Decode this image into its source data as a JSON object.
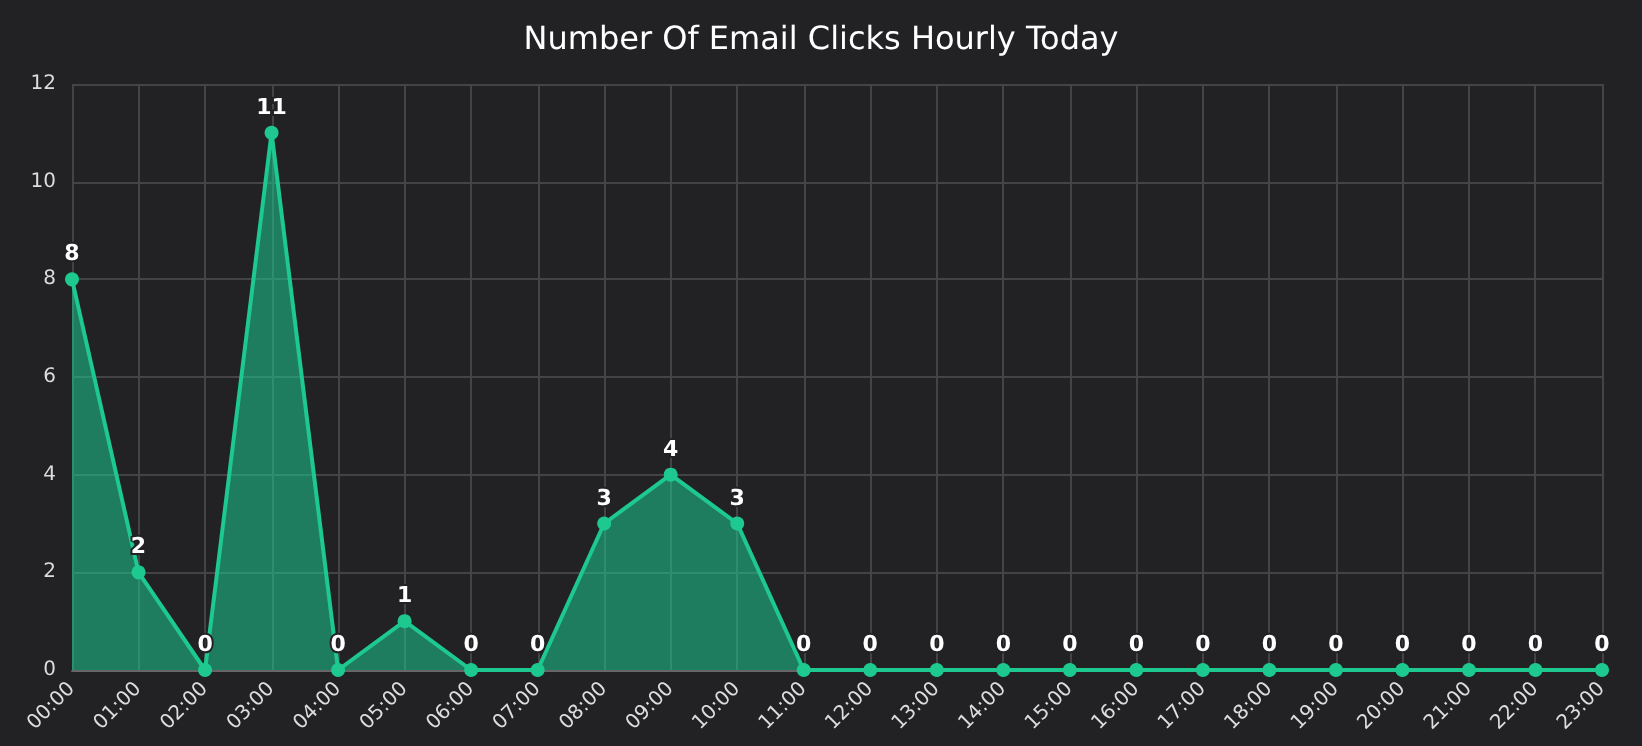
{
  "chart_data": {
    "type": "area",
    "title": "Number Of Email Clicks Hourly Today",
    "categories": [
      "00:00",
      "01:00",
      "02:00",
      "03:00",
      "04:00",
      "05:00",
      "06:00",
      "07:00",
      "08:00",
      "09:00",
      "10:00",
      "11:00",
      "12:00",
      "13:00",
      "14:00",
      "15:00",
      "16:00",
      "17:00",
      "18:00",
      "19:00",
      "20:00",
      "21:00",
      "22:00",
      "23:00"
    ],
    "series": [
      {
        "color": "#1ec98f",
        "values": [
          8,
          2,
          0,
          11,
          0,
          1,
          0,
          0,
          3,
          4,
          3,
          0,
          0,
          0,
          0,
          0,
          0,
          0,
          0,
          0,
          0,
          0,
          0,
          0
        ]
      }
    ],
    "ylim": [
      0,
      12
    ],
    "yticks": [
      0,
      2,
      4,
      6,
      8,
      10,
      12
    ],
    "grid": true,
    "data_labels": true,
    "marker": "circle"
  }
}
